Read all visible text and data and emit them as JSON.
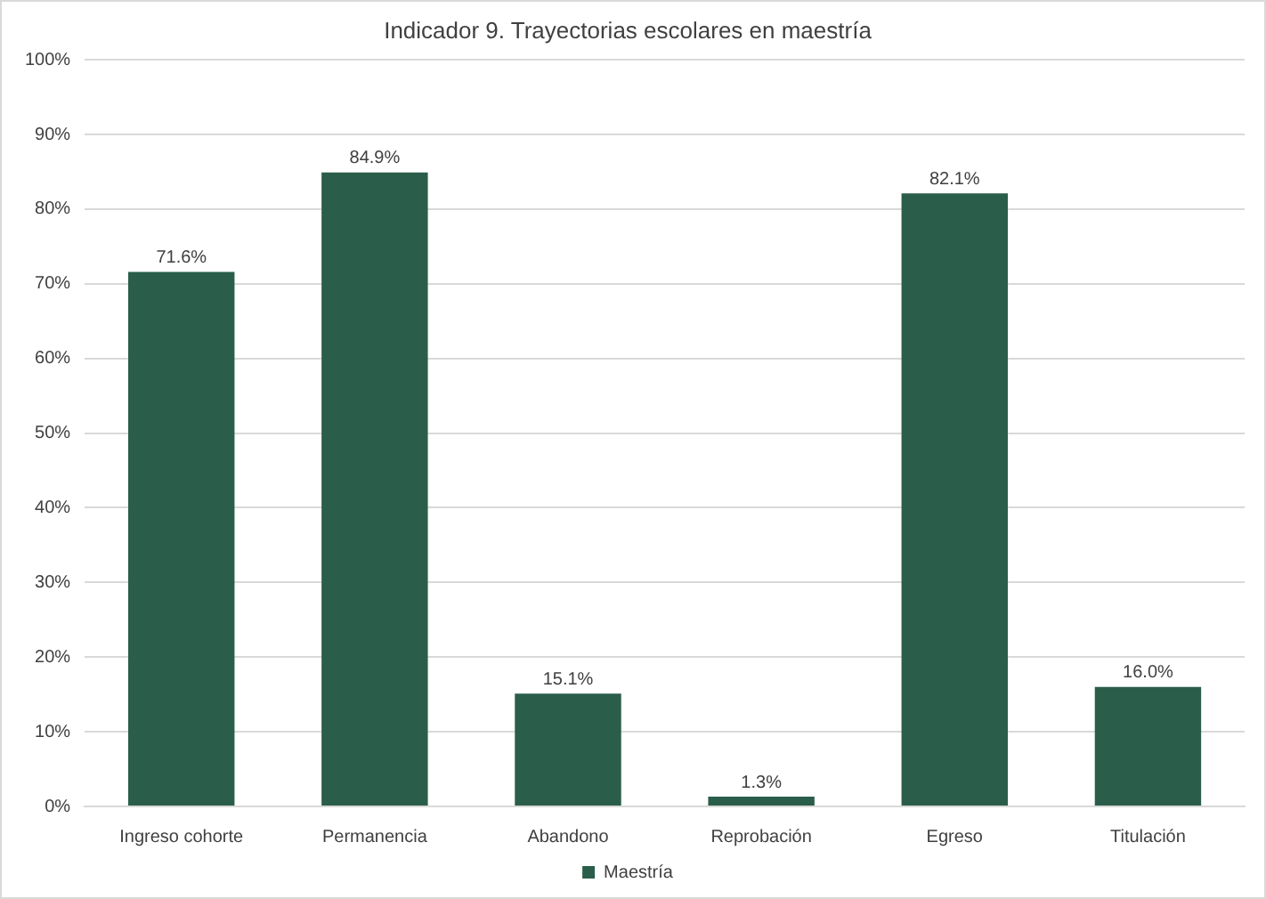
{
  "chart_data": {
    "type": "bar",
    "title": "Indicador 9. Trayectorias escolares en maestría",
    "categories": [
      "Ingreso cohorte",
      "Permanencia",
      "Abandono",
      "Reprobación",
      "Egreso",
      "Titulación"
    ],
    "series": [
      {
        "name": "Maestría",
        "color": "#2a5e4a",
        "values": [
          71.6,
          84.9,
          15.1,
          1.3,
          82.1,
          16.0
        ],
        "value_labels": [
          "71.6%",
          "84.9%",
          "15.1%",
          "1.3%",
          "82.1%",
          "16.0%"
        ]
      }
    ],
    "ylim": [
      0,
      100
    ],
    "yticks": [
      {
        "value": 0,
        "label": "0%"
      },
      {
        "value": 10,
        "label": "10%"
      },
      {
        "value": 20,
        "label": "20%"
      },
      {
        "value": 30,
        "label": "30%"
      },
      {
        "value": 40,
        "label": "40%"
      },
      {
        "value": 50,
        "label": "50%"
      },
      {
        "value": 60,
        "label": "60%"
      },
      {
        "value": 70,
        "label": "70%"
      },
      {
        "value": 80,
        "label": "80%"
      },
      {
        "value": 90,
        "label": "90%"
      },
      {
        "value": 100,
        "label": "100%"
      }
    ],
    "grid": "y",
    "legend": "bottom"
  }
}
